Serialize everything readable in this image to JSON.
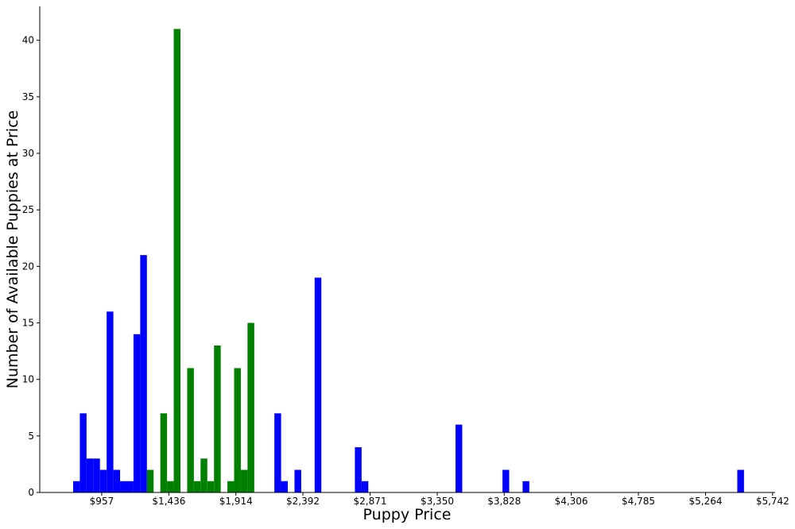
{
  "chart_data": {
    "type": "histogram",
    "x_label": "Puppy Price",
    "y_label": "Number of Available Puppies at Price",
    "bins": [
      753.0,
      800.85,
      848.7,
      896.55,
      944.4,
      992.25,
      1040.1,
      1087.95,
      1135.8,
      1183.65,
      1231.5,
      1279.35,
      1327.2,
      1375.05,
      1422.9,
      1470.75,
      1518.6,
      1566.45,
      1614.3,
      1662.15,
      1710.0,
      1757.85,
      1805.7,
      1853.55,
      1901.4,
      1949.25,
      1997.1,
      2044.95,
      2092.8,
      2140.65,
      2188.5,
      2236.35,
      2284.2,
      2332.05,
      2379.9,
      2427.75,
      2475.6,
      2523.45,
      2571.3,
      2619.15,
      2667.0,
      2714.85,
      2762.7,
      2810.55,
      2858.4,
      2906.25,
      2954.1,
      3001.95,
      3049.8,
      3097.65,
      3145.5,
      3193.35,
      3241.2,
      3289.05,
      3336.9,
      3384.75,
      3432.6,
      3480.45,
      3528.3,
      3576.15,
      3624.0,
      3671.85,
      3719.7,
      3767.55,
      3815.4,
      3863.25,
      3911.1,
      3958.95,
      4006.8,
      4054.65,
      4102.5,
      4150.35,
      4198.2,
      4246.05,
      4293.9,
      4341.75,
      4389.6,
      4437.45,
      4485.3,
      4533.15,
      4581.0,
      4628.85,
      4676.7,
      4724.55,
      4772.4,
      4820.25,
      4868.1,
      4915.95,
      4963.8,
      5011.65,
      5059.5,
      5107.35,
      5155.2,
      5203.05,
      5250.9,
      5298.75,
      5346.6,
      5394.45,
      5442.3,
      5490.15,
      5538.0
    ],
    "series": [
      {
        "color": "#0000ff",
        "values": [
          1,
          7,
          3,
          3,
          2,
          16,
          2,
          1,
          1,
          14,
          21,
          0,
          0,
          0,
          0,
          0,
          0,
          0,
          0,
          0,
          0,
          0,
          0,
          0,
          0,
          0,
          0,
          0,
          0,
          0,
          7,
          1,
          0,
          2,
          0,
          0,
          19,
          0,
          0,
          0,
          0,
          0,
          4,
          1,
          0,
          0,
          0,
          0,
          0,
          0,
          0,
          0,
          0,
          0,
          0,
          0,
          0,
          6,
          0,
          0,
          0,
          0,
          0,
          0,
          2,
          0,
          0,
          1,
          0,
          0,
          0,
          0,
          0,
          0,
          0,
          0,
          0,
          0,
          0,
          0,
          0,
          0,
          0,
          0,
          0,
          0,
          0,
          0,
          0,
          0,
          0,
          0,
          0,
          0,
          0,
          0,
          0,
          0,
          0,
          2
        ]
      },
      {
        "color": "#008000",
        "values": [
          0,
          0,
          0,
          0,
          0,
          0,
          0,
          0,
          0,
          0,
          0,
          2,
          0,
          7,
          1,
          41,
          0,
          11,
          1,
          3,
          1,
          13,
          0,
          1,
          11,
          2,
          15,
          0,
          0,
          0,
          0,
          0,
          0,
          0,
          0,
          0,
          0,
          0,
          0,
          0,
          0,
          0,
          0,
          0,
          0,
          0,
          0,
          0,
          0,
          0,
          0,
          0,
          0,
          0,
          0,
          0,
          0,
          0,
          0,
          0,
          0,
          0,
          0,
          0,
          0,
          0,
          0,
          0,
          0,
          0,
          0,
          0,
          0,
          0,
          0,
          0,
          0,
          0,
          0,
          0,
          0,
          0,
          0,
          0,
          0,
          0,
          0,
          0,
          0,
          0,
          0,
          0,
          0,
          0,
          0,
          0,
          0,
          0,
          0,
          0
        ]
      }
    ],
    "xlim": [
      515,
      5760
    ],
    "xticks": [
      {
        "value": 957,
        "label": "$957"
      },
      {
        "value": 1436,
        "label": "$1,436"
      },
      {
        "value": 1914,
        "label": "$1,914"
      },
      {
        "value": 2392,
        "label": "$2,392"
      },
      {
        "value": 2871,
        "label": "$2,871"
      },
      {
        "value": 3350,
        "label": "$3,350"
      },
      {
        "value": 3828,
        "label": "$3,828"
      },
      {
        "value": 4306,
        "label": "$4,306"
      },
      {
        "value": 4785,
        "label": "$4,785"
      },
      {
        "value": 5264,
        "label": "$5,264"
      },
      {
        "value": 5742,
        "label": "$5,742"
      }
    ],
    "ylim": [
      0,
      43
    ],
    "yticks": [
      0,
      5,
      10,
      15,
      20,
      25,
      30,
      35,
      40
    ],
    "grid": false
  }
}
